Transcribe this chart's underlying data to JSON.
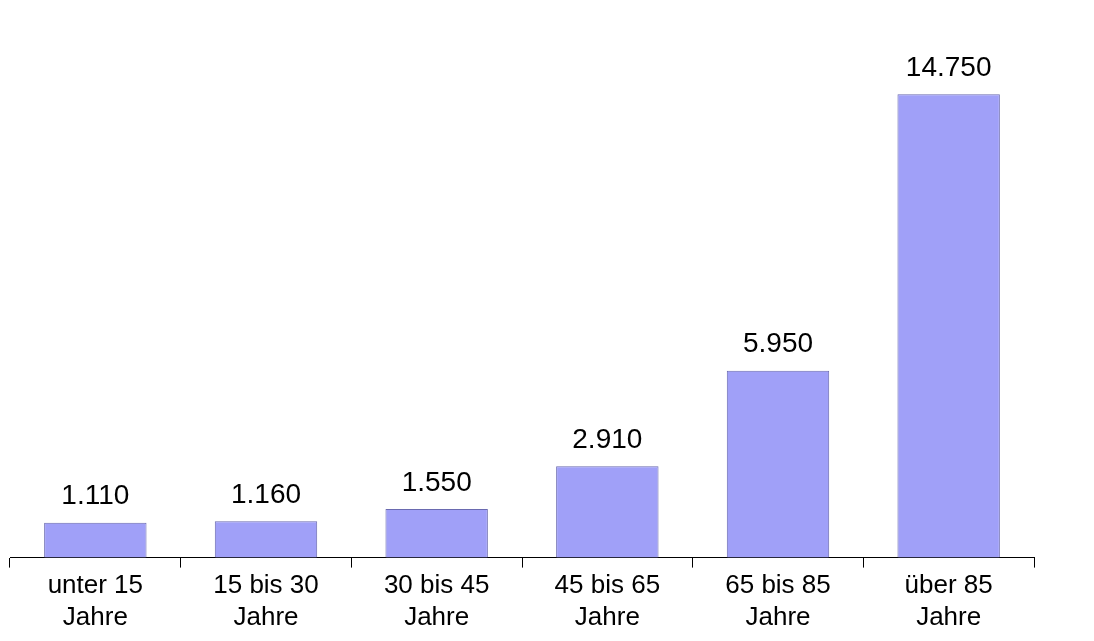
{
  "chart_data": {
    "type": "bar",
    "categories": [
      "unter 15 Jahre",
      "15 bis 30 Jahre",
      "30 bis 45 Jahre",
      "45 bis 65 Jahre",
      "65 bis 85 Jahre",
      "über 85 Jahre"
    ],
    "values": [
      1110,
      1160,
      1550,
      2910,
      5950,
      14750
    ],
    "value_labels": [
      "1.110",
      "1.160",
      "1.550",
      "2.910",
      "5.950",
      "14.750"
    ],
    "color": "#a0a0f8",
    "grid": false,
    "legend": false
  }
}
